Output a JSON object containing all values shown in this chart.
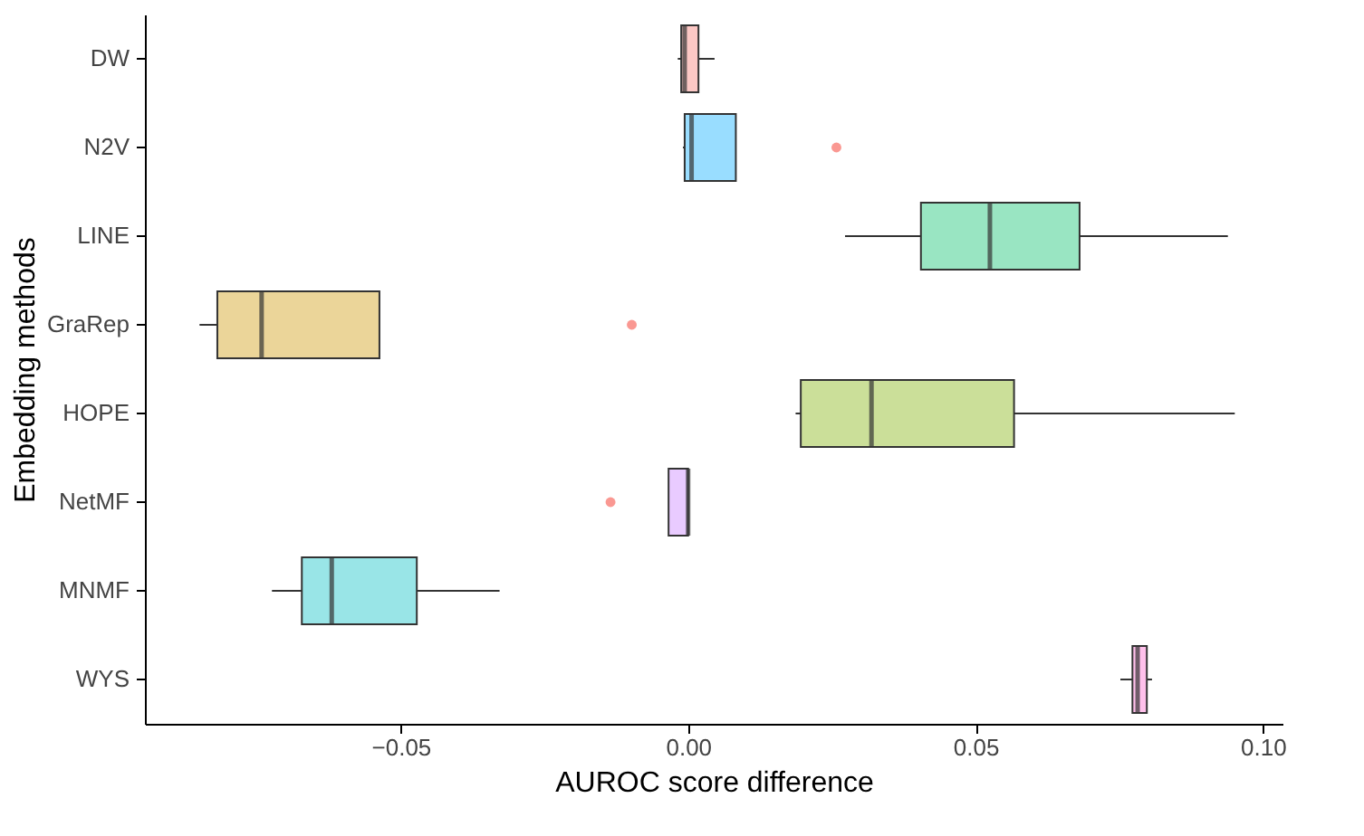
{
  "chart_data": {
    "type": "box",
    "orientation": "horizontal",
    "xlabel": "AUROC score difference",
    "ylabel": "Embedding methods",
    "categories": [
      "DW",
      "N2V",
      "LINE",
      "GraRep",
      "HOPE",
      "NetMF",
      "MNMF",
      "WYS"
    ],
    "colors": [
      "#fcc8c5",
      "#99ddff",
      "#99e5c2",
      "#ebd599",
      "#cbdf99",
      "#e9cbff",
      "#99e5e7",
      "#ffc0eb"
    ],
    "boxes": [
      {
        "low": -0.0018,
        "q1": -0.0012,
        "median": -0.0006,
        "q3": 0.0018,
        "high": 0.0046
      },
      {
        "low": -0.0009,
        "q1": -0.0006,
        "median": 0.0006,
        "q3": 0.0083,
        "high": 0.0083,
        "outliers": [
          0.0258
        ]
      },
      {
        "low": 0.0273,
        "q1": 0.0405,
        "median": 0.0525,
        "q3": 0.0681,
        "high": 0.0939
      },
      {
        "low": -0.085,
        "q1": -0.0819,
        "median": -0.0742,
        "q3": -0.0537,
        "high": -0.0537,
        "outliers": [
          -0.0098
        ]
      },
      {
        "low": 0.0187,
        "q1": 0.0196,
        "median": 0.0319,
        "q3": 0.0567,
        "high": 0.0951
      },
      {
        "low": -0.0034,
        "q1": -0.0034,
        "median": 0.0,
        "q3": 0.0,
        "high": 0.0,
        "outliers": [
          -0.0135
        ]
      },
      {
        "low": -0.0724,
        "q1": -0.0672,
        "median": -0.062,
        "q3": -0.0472,
        "high": -0.0328
      },
      {
        "low": 0.0752,
        "q1": 0.0773,
        "median": 0.0782,
        "q3": 0.0798,
        "high": 0.0807
      }
    ],
    "xlim": [
      -0.0945,
      0.1034
    ],
    "xticks": [
      {
        "value": -0.05,
        "label": "−0.05"
      },
      {
        "value": 0,
        "label": "0.00"
      },
      {
        "value": 0.05,
        "label": "0.05"
      },
      {
        "value": 0.1,
        "label": "0.10"
      }
    ],
    "grid": false
  }
}
